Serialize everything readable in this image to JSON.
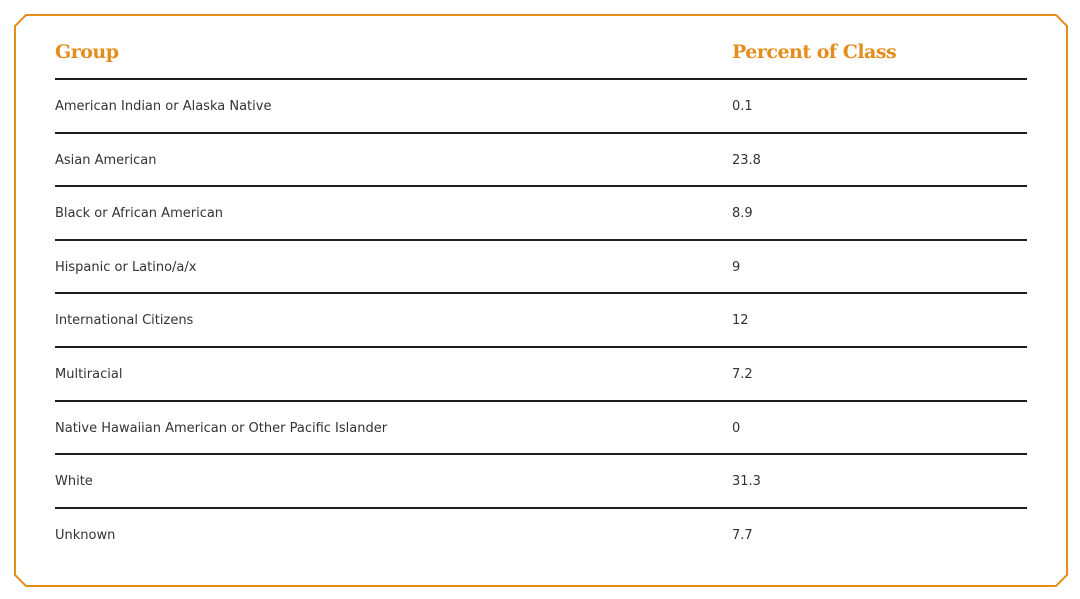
{
  "colors": {
    "accent": "#e48d1c",
    "rule": "#1e1e1e",
    "text": "#333333"
  },
  "table": {
    "headers": {
      "group": "Group",
      "percent": "Percent of Class"
    },
    "rows": [
      {
        "group": "American Indian or Alaska Native",
        "percent": "0.1"
      },
      {
        "group": "Asian American",
        "percent": "23.8"
      },
      {
        "group": "Black or African American",
        "percent": "8.9"
      },
      {
        "group": "Hispanic or Latino/a/x",
        "percent": "9"
      },
      {
        "group": "International Citizens",
        "percent": "12"
      },
      {
        "group": "Multiracial",
        "percent": "7.2"
      },
      {
        "group": "Native Hawaiian American or Other Pacific Islander",
        "percent": "0"
      },
      {
        "group": "White",
        "percent": "31.3"
      },
      {
        "group": "Unknown",
        "percent": "7.7"
      }
    ]
  }
}
